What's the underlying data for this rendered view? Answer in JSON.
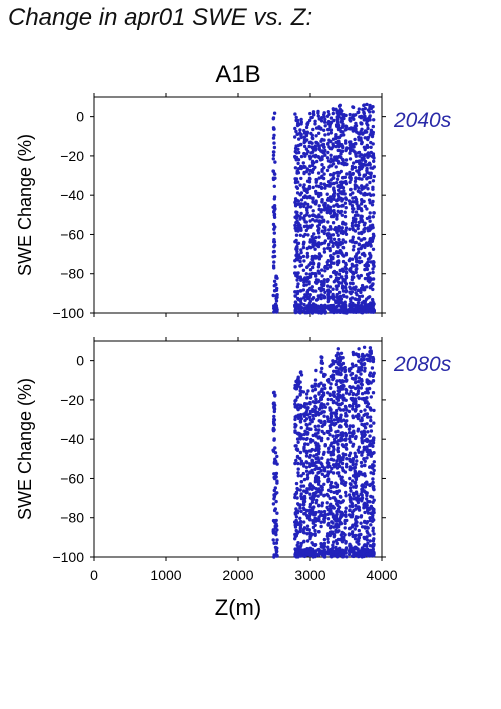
{
  "page": {
    "title": "Change in apr01 SWE vs. Z:"
  },
  "colors": {
    "points": "#2222bb",
    "period_label": "#2a2aa8",
    "axes": "#000000"
  },
  "chart_data": [
    {
      "type": "scatter",
      "title": "A1B",
      "period": "2040s",
      "xlabel": "",
      "ylabel": "SWE Change (%)",
      "xlim": [
        0,
        4000
      ],
      "ylim": [
        -100,
        10
      ],
      "xticks": [
        0,
        1000,
        2000,
        3000,
        4000
      ],
      "xticklabels": [],
      "yticks": [
        0,
        -20,
        -40,
        -60,
        -80,
        -100
      ],
      "yticklabels": [
        "0",
        "−20",
        "−40",
        "−60",
        "−80",
        "−100"
      ],
      "grid": false,
      "point_columns": [
        {
          "z": 2500,
          "y_min": -100,
          "y_max": 2
        },
        {
          "z": 2530,
          "y_min": -100,
          "y_max": -80
        },
        {
          "z": 2800,
          "y_min": -100,
          "y_max": 2
        },
        {
          "z": 2830,
          "y_min": -100,
          "y_max": 0
        },
        {
          "z": 2870,
          "y_min": -100,
          "y_max": 2
        },
        {
          "z": 2920,
          "y_min": -100,
          "y_max": -5
        },
        {
          "z": 2960,
          "y_min": -100,
          "y_max": 0
        },
        {
          "z": 3000,
          "y_min": -100,
          "y_max": 2
        },
        {
          "z": 3040,
          "y_min": -100,
          "y_max": 3
        },
        {
          "z": 3080,
          "y_min": -100,
          "y_max": 1
        },
        {
          "z": 3120,
          "y_min": -100,
          "y_max": 3
        },
        {
          "z": 3160,
          "y_min": -100,
          "y_max": 0
        },
        {
          "z": 3200,
          "y_min": -100,
          "y_max": 2
        },
        {
          "z": 3250,
          "y_min": -100,
          "y_max": 3
        },
        {
          "z": 3290,
          "y_min": -100,
          "y_max": 0
        },
        {
          "z": 3330,
          "y_min": -100,
          "y_max": 4
        },
        {
          "z": 3370,
          "y_min": -100,
          "y_max": 5
        },
        {
          "z": 3400,
          "y_min": -100,
          "y_max": 6
        },
        {
          "z": 3430,
          "y_min": -100,
          "y_max": 6
        },
        {
          "z": 3460,
          "y_min": -100,
          "y_max": 5
        },
        {
          "z": 3500,
          "y_min": -100,
          "y_max": 3
        },
        {
          "z": 3560,
          "y_min": -100,
          "y_max": 2
        },
        {
          "z": 3600,
          "y_min": -100,
          "y_max": 5
        },
        {
          "z": 3640,
          "y_min": -100,
          "y_max": 6
        },
        {
          "z": 3680,
          "y_min": -100,
          "y_max": 6
        },
        {
          "z": 3720,
          "y_min": -100,
          "y_max": 4
        },
        {
          "z": 3760,
          "y_min": -100,
          "y_max": 6
        },
        {
          "z": 3800,
          "y_min": -100,
          "y_max": 7
        },
        {
          "z": 3840,
          "y_min": -100,
          "y_max": 7
        },
        {
          "z": 3880,
          "y_min": -100,
          "y_max": 6
        }
      ]
    },
    {
      "type": "scatter",
      "title": "",
      "period": "2080s",
      "xlabel": "Z(m)",
      "ylabel": "SWE Change (%)",
      "xlim": [
        0,
        4000
      ],
      "ylim": [
        -100,
        10
      ],
      "xticks": [
        0,
        1000,
        2000,
        3000,
        4000
      ],
      "xticklabels": [
        "0",
        "1000",
        "2000",
        "3000",
        "4000"
      ],
      "yticks": [
        0,
        -20,
        -40,
        -60,
        -80,
        -100
      ],
      "yticklabels": [
        "0",
        "−20",
        "−40",
        "−60",
        "−80",
        "−100"
      ],
      "grid": false,
      "point_columns": [
        {
          "z": 2500,
          "y_min": -100,
          "y_max": -15
        },
        {
          "z": 2530,
          "y_min": -100,
          "y_max": -45
        },
        {
          "z": 2800,
          "y_min": -100,
          "y_max": -8
        },
        {
          "z": 2830,
          "y_min": -100,
          "y_max": -8
        },
        {
          "z": 2870,
          "y_min": -100,
          "y_max": -5
        },
        {
          "z": 2920,
          "y_min": -100,
          "y_max": -15
        },
        {
          "z": 2960,
          "y_min": -100,
          "y_max": -10
        },
        {
          "z": 3000,
          "y_min": -100,
          "y_max": -18
        },
        {
          "z": 3040,
          "y_min": -100,
          "y_max": -12
        },
        {
          "z": 3080,
          "y_min": -100,
          "y_max": -5
        },
        {
          "z": 3120,
          "y_min": -100,
          "y_max": -12
        },
        {
          "z": 3160,
          "y_min": -100,
          "y_max": 3
        },
        {
          "z": 3200,
          "y_min": -100,
          "y_max": -5
        },
        {
          "z": 3250,
          "y_min": -100,
          "y_max": -8
        },
        {
          "z": 3290,
          "y_min": -100,
          "y_max": -2
        },
        {
          "z": 3330,
          "y_min": -100,
          "y_max": 0
        },
        {
          "z": 3370,
          "y_min": -100,
          "y_max": 5
        },
        {
          "z": 3400,
          "y_min": -100,
          "y_max": 7
        },
        {
          "z": 3430,
          "y_min": -100,
          "y_max": 4
        },
        {
          "z": 3460,
          "y_min": -100,
          "y_max": 2
        },
        {
          "z": 3500,
          "y_min": -100,
          "y_max": -2
        },
        {
          "z": 3560,
          "y_min": -100,
          "y_max": 0
        },
        {
          "z": 3600,
          "y_min": -100,
          "y_max": 5
        },
        {
          "z": 3640,
          "y_min": -100,
          "y_max": 6
        },
        {
          "z": 3680,
          "y_min": -100,
          "y_max": 7
        },
        {
          "z": 3720,
          "y_min": -100,
          "y_max": 4
        },
        {
          "z": 3760,
          "y_min": -100,
          "y_max": 7
        },
        {
          "z": 3800,
          "y_min": -100,
          "y_max": 8
        },
        {
          "z": 3840,
          "y_min": -100,
          "y_max": 8
        },
        {
          "z": 3880,
          "y_min": -100,
          "y_max": 7
        }
      ]
    }
  ]
}
